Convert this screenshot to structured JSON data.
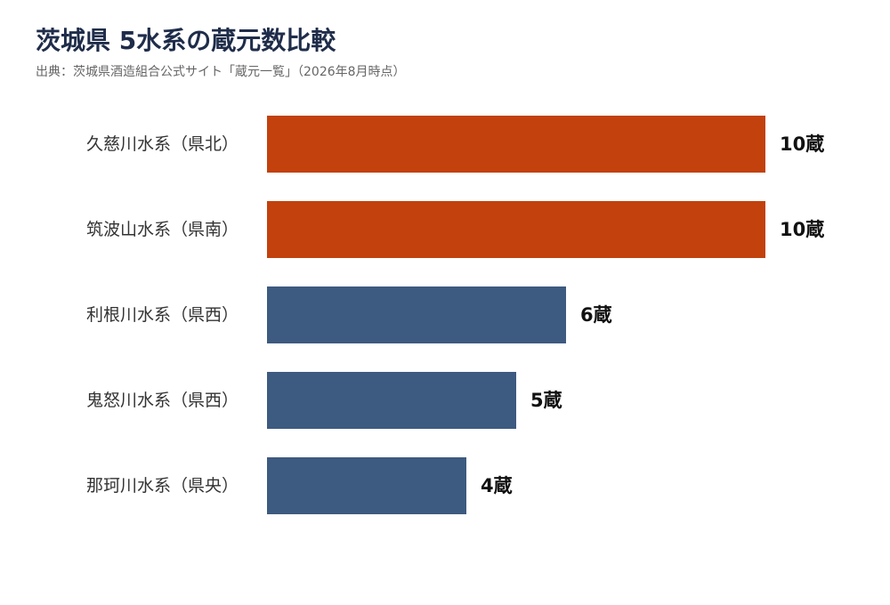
{
  "chart_data": {
    "type": "bar",
    "orientation": "horizontal",
    "title": "茨城県 5水系の蔵元数比較",
    "subtitle": "出典：茨城県酒造組合公式サイト「蔵元一覧」（2026年8月時点）",
    "categories": [
      "久慈川水系（県北）",
      "筑波山水系（県南）",
      "利根川水系（県西）",
      "鬼怒川水系（県西）",
      "那珂川水系（県央）"
    ],
    "values": [
      10,
      10,
      6,
      5,
      4
    ],
    "value_labels": [
      "10蔵",
      "10蔵",
      "6蔵",
      "5蔵",
      "4蔵"
    ],
    "highlight_color": "#c2410c",
    "default_color": "#3d5a80",
    "highlighted": [
      true,
      true,
      false,
      false,
      false
    ],
    "xlim": [
      0,
      10
    ],
    "grid": false,
    "legend": "none"
  }
}
